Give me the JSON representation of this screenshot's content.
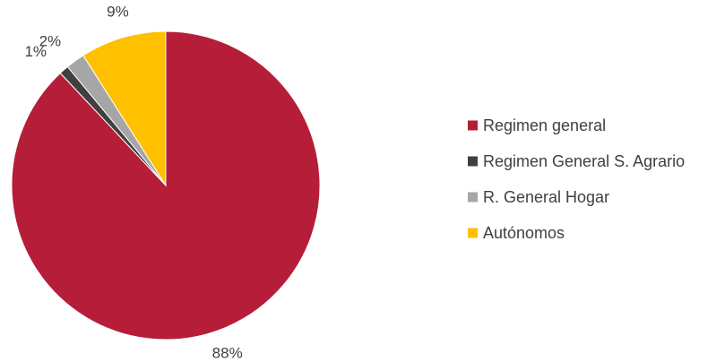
{
  "chart_data": {
    "type": "pie",
    "categories": [
      "Regimen general",
      "Regimen General S. Agrario",
      "R. General Hogar",
      "Autónomos"
    ],
    "values": [
      88,
      1,
      2,
      9
    ],
    "value_labels": [
      "88%",
      "1%",
      "2%",
      "9%"
    ],
    "colors": [
      "#b51d38",
      "#404040",
      "#a6a6a6",
      "#ffc000"
    ],
    "legend_position": "right",
    "start_angle_deg": 0,
    "direction": "clockwise"
  }
}
